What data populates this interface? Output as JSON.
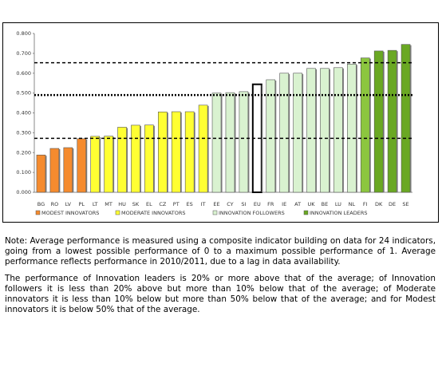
{
  "chart_data": {
    "type": "bar",
    "categories": [
      "BG",
      "RO",
      "LV",
      "PL",
      "LT",
      "MT",
      "HU",
      "SK",
      "EL",
      "CZ",
      "PT",
      "ES",
      "IT",
      "EE",
      "CY",
      "SI",
      "EU",
      "FR",
      "IE",
      "AT",
      "UK",
      "BE",
      "LU",
      "NL",
      "FI",
      "DK",
      "DE",
      "SE"
    ],
    "values": [
      0.188,
      0.221,
      0.225,
      0.27,
      0.282,
      0.283,
      0.328,
      0.338,
      0.339,
      0.405,
      0.406,
      0.406,
      0.439,
      0.5,
      0.502,
      0.507,
      0.544,
      0.567,
      0.6,
      0.6,
      0.624,
      0.624,
      0.628,
      0.646,
      0.677,
      0.712,
      0.715,
      0.745
    ],
    "colors": [
      "#f58b2e",
      "#f58b2e",
      "#f58b2e",
      "#f58b2e",
      "#ffff33",
      "#ffff33",
      "#ffff33",
      "#ffff33",
      "#ffff33",
      "#ffff33",
      "#ffff33",
      "#ffff33",
      "#ffff33",
      "#d9f2d0",
      "#d9f2d0",
      "#d9f2d0",
      "#ffffff",
      "#d9f2d0",
      "#d9f2d0",
      "#d9f2d0",
      "#d9f2d0",
      "#d9f2d0",
      "#d9f2d0",
      "#d9f2d0",
      "#8cc63f",
      "#6aa823",
      "#6aa823",
      "#6aa823"
    ],
    "ylim": [
      0,
      0.8
    ],
    "yticks": [
      {
        "value": 0,
        "label": "0.000"
      },
      {
        "value": 0.1,
        "label": "0.100"
      },
      {
        "value": 0.2,
        "label": "0.200"
      },
      {
        "value": 0.3,
        "label": "0.300"
      },
      {
        "value": 0.4,
        "label": "0.400"
      },
      {
        "value": 0.5,
        "label": "0.500"
      },
      {
        "value": 0.6,
        "label": "0.600"
      },
      {
        "value": 0.7,
        "label": "0.700"
      },
      {
        "value": 0.8,
        "label": "0.800"
      }
    ],
    "reference_lines": [
      0.653,
      0.49,
      0.272
    ],
    "legend": [
      {
        "name": "MODEST INNOVATORS",
        "color": "#f58b2e"
      },
      {
        "name": "MODERATE INNOVATORS",
        "color": "#ffff33"
      },
      {
        "name": "INNOVATION FOLLOWERS",
        "color": "#d9f2d0"
      },
      {
        "name": "INNOVATION LEADERS",
        "color": "#6aa823"
      }
    ]
  },
  "notes": [
    "Note: Average performance is measured using a composite indicator building on data for 24 indicators, going from a lowest possible performance of 0 to a maximum possible performance of 1. Average performance reflects performance in 2010/2011, due to a lag in data availability.",
    "The performance of Innovation leaders is 20% or more above that of the average; of Innovation followers it is less than 20% above but more than 10% below that of the average; of Moderate innovators it is less than 10% below but more than 50% below that of the average; and for Modest innovators it is below 50% that of the average."
  ]
}
